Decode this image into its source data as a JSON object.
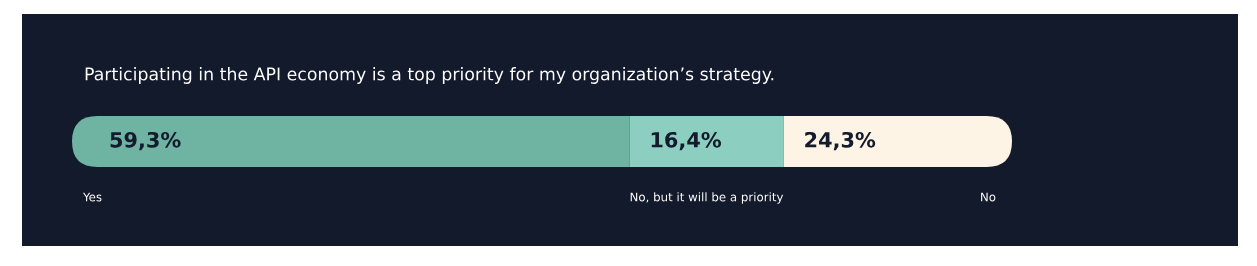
{
  "chart_data": {
    "type": "bar",
    "orientation": "horizontal",
    "stacked": true,
    "title": "Participating in the API economy is a top priority for my organization’s strategy.",
    "categories": [
      null
    ],
    "series": [
      {
        "name": "Yes",
        "color": "#6fb3a2",
        "values": [
          59.3
        ],
        "value_labels": [
          "59,3%"
        ]
      },
      {
        "name": "No, but it will be a priority",
        "color": "#8ccfc0",
        "values": [
          16.4
        ],
        "value_labels": [
          "16,4%"
        ]
      },
      {
        "name": "No",
        "color": "#fdf4e6",
        "values": [
          24.3
        ],
        "value_labels": [
          "24,3%"
        ]
      }
    ],
    "legend": false
  }
}
